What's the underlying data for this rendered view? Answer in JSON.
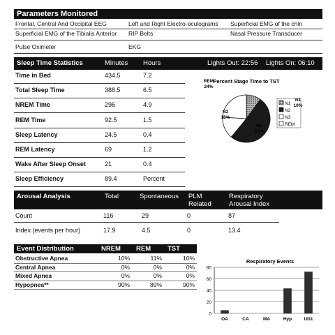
{
  "parameters": {
    "title": "Parameters Monitored",
    "row1": [
      "Frontal, Central And Occipital EEG",
      "Left and Right Electro-oculograms",
      "Superficial EMG of the chin"
    ],
    "row2": [
      "Superficial EMG of the Tibialis  Anterior",
      "RIP Belts",
      "Nasal Pressure Transducer"
    ],
    "row3": [
      "Pulse Oximeter",
      "EKG"
    ]
  },
  "sleep": {
    "title": "Sleep Time Statistics",
    "col_minutes": "Minutes",
    "col_hours": "Hours",
    "lights_out": "Lights Out: 22:56",
    "lights_on": "Lights On: 06:10",
    "rows": [
      {
        "label": "Time in Bed",
        "minutes": "434.5",
        "hours": "7.2"
      },
      {
        "label": "Total Sleep Time",
        "minutes": "388.5",
        "hours": "6.5"
      },
      {
        "label": "NREM Time",
        "minutes": "296",
        "hours": "4.9"
      },
      {
        "label": "REM Time",
        "minutes": "92.5",
        "hours": "1.5"
      },
      {
        "label": "Sleep Latency",
        "minutes": "24.5",
        "hours": "0.4"
      },
      {
        "label": "REM Latency",
        "minutes": "69",
        "hours": "1.2"
      },
      {
        "label": "Wake After Sleep Onset",
        "minutes": "21",
        "hours": "0.4"
      },
      {
        "label": "Sleep Efficiency",
        "minutes": "89.4",
        "hours": "Percent"
      }
    ]
  },
  "arousal": {
    "title": "Arousal Analysis",
    "col_total": "Total",
    "col_spont": "Spontaneous",
    "col_plm1": "PLM",
    "col_plm2": "Related",
    "col_resp1": "Respiratory",
    "col_resp2": "Arousal Index",
    "rows": [
      {
        "label": "Count",
        "total": "116",
        "spont": "29",
        "plm": "0",
        "resp": "87"
      },
      {
        "label": "Index (events per hour)",
        "total": "17.9",
        "spont": "4.5",
        "plm": "0",
        "resp": "13.4"
      }
    ]
  },
  "events": {
    "title": "Event Distribution",
    "col_nrem": "NREM",
    "col_rem": "REM",
    "col_tst": "TST",
    "rows": [
      {
        "label": "Obstructive Apnea",
        "nrem": "10%",
        "rem": "11%",
        "tst": "10%"
      },
      {
        "label": "Central Apnea",
        "nrem": "0%",
        "rem": "0%",
        "tst": "0%"
      },
      {
        "label": "Mixed Apnea",
        "nrem": "0%",
        "rem": "0%",
        "tst": "0%"
      },
      {
        "label": "Hypopnea**",
        "nrem": "90%",
        "rem": "89%",
        "tst": "90%"
      }
    ]
  },
  "chart_data": [
    {
      "type": "pie",
      "title": "Percent Stage Time to TST",
      "labels": [
        "N1",
        "N2",
        "N3",
        "REM"
      ],
      "values": [
        10,
        51,
        15,
        24
      ],
      "value_labels": [
        "10%",
        "51%",
        "15%",
        "24%"
      ],
      "legend": [
        "N1",
        "N2",
        "N3",
        "REM"
      ],
      "legend_position": "right",
      "colors": {
        "N1": "#888888",
        "N2": "#1a1a1a",
        "N3": "#ffffff",
        "REM": "#ffffff"
      }
    },
    {
      "type": "bar",
      "title": "Respiratory Events",
      "categories": [
        "OA",
        "CA",
        "MA",
        "Hyp",
        "UD1"
      ],
      "values": [
        5,
        0,
        0,
        43,
        72
      ],
      "ylim": [
        0,
        80
      ],
      "yticks": [
        "0",
        "20",
        "40",
        "60",
        "80"
      ],
      "grid": true,
      "color": "#333333"
    }
  ]
}
